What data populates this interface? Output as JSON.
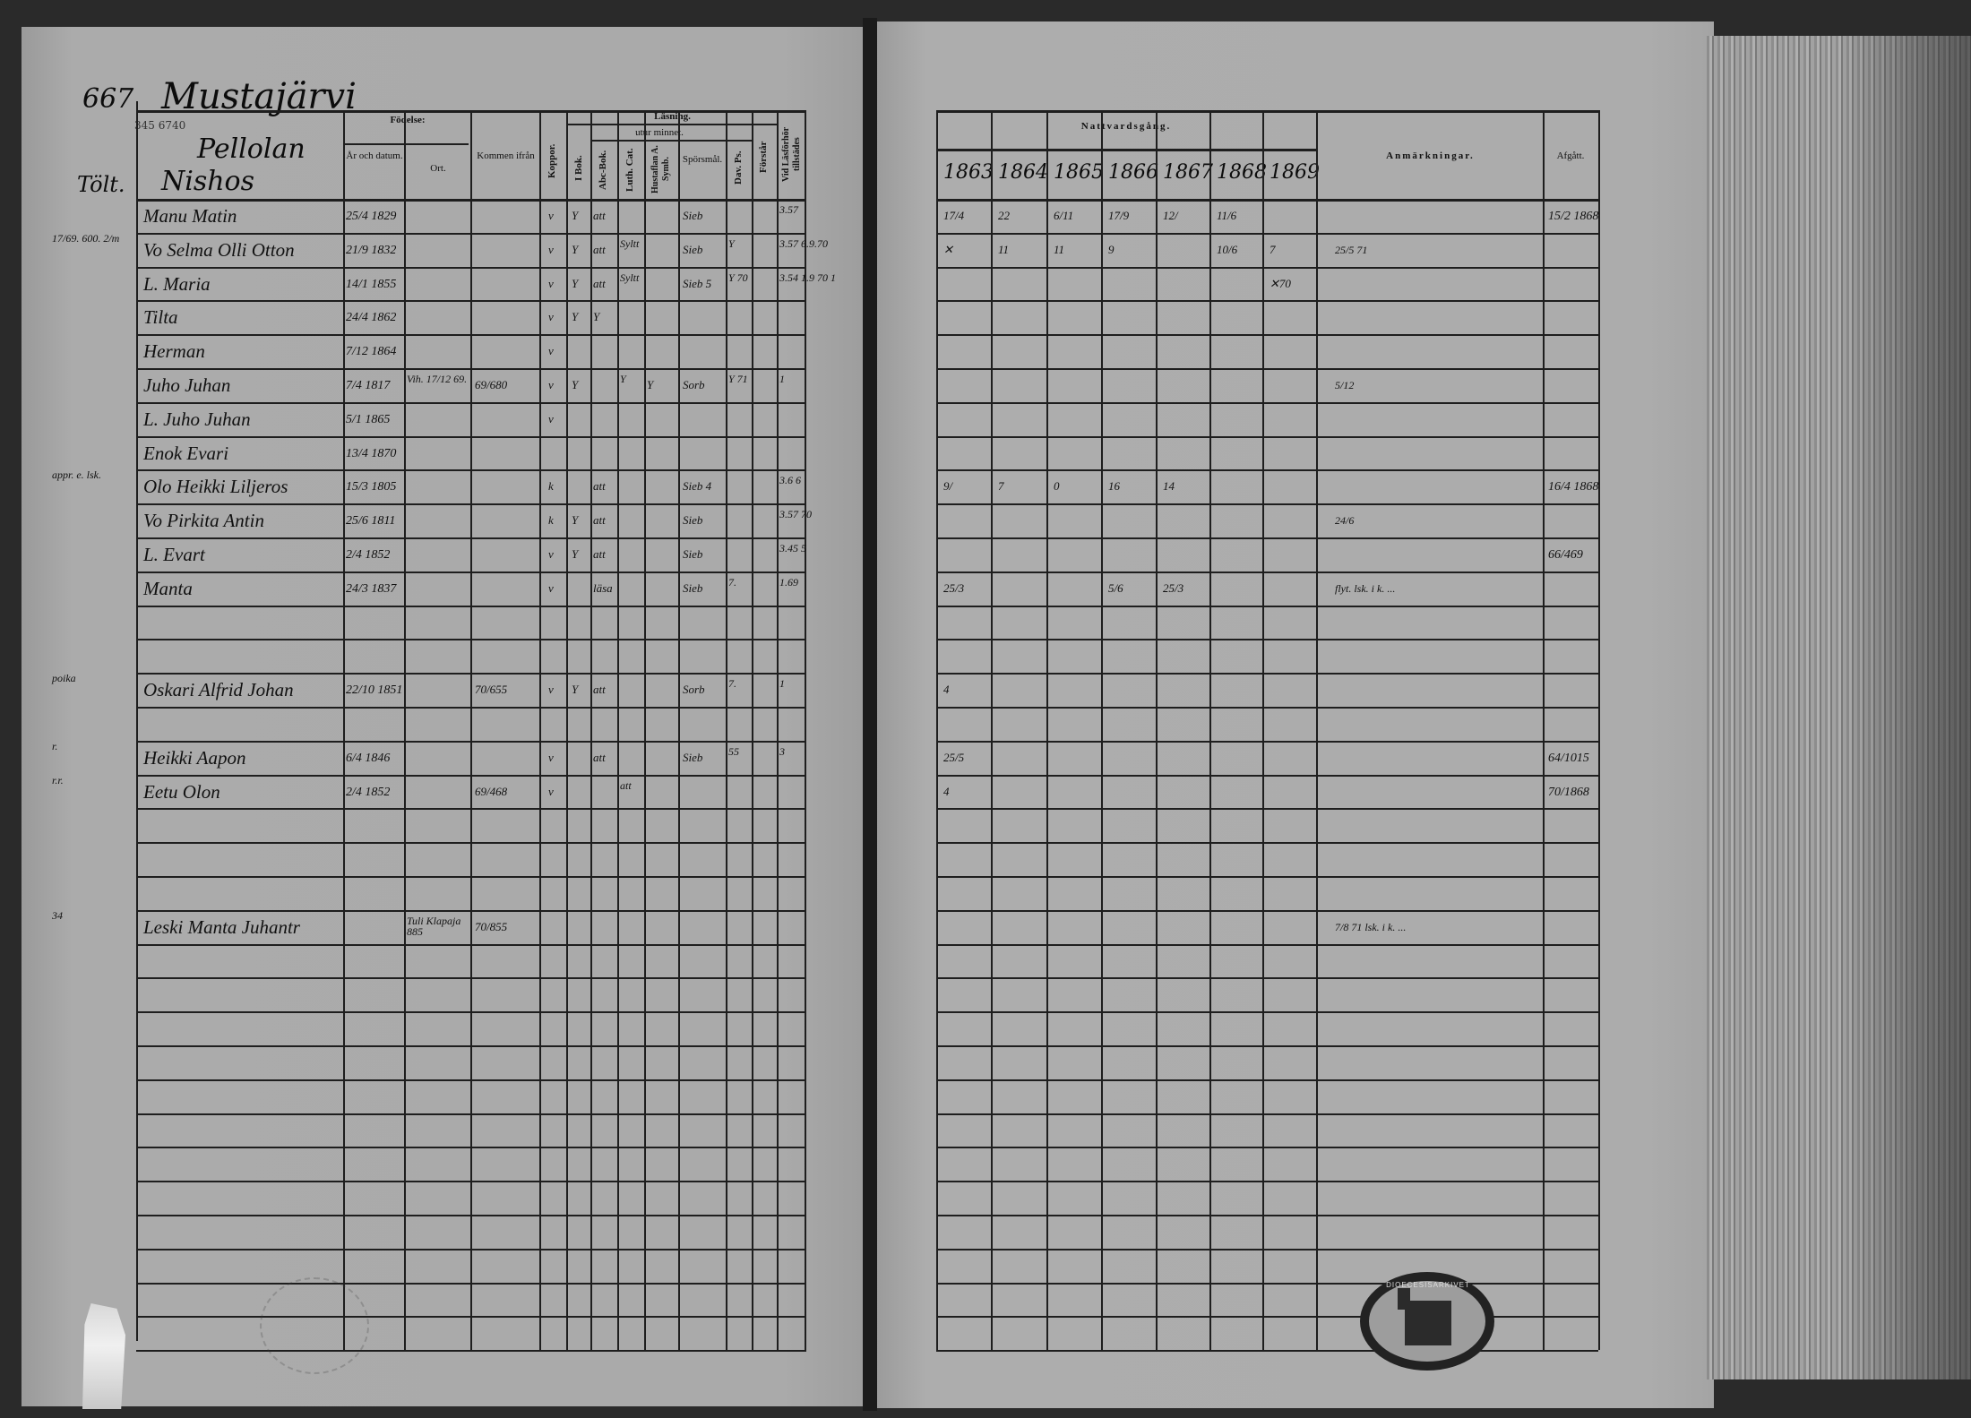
{
  "document": {
    "page_number": "667",
    "village": "Mustajärvi",
    "pencil_ref": "345 6740",
    "farm": "Pellolan",
    "tenant_label": "Tölt.",
    "tenant_name": "Nishos",
    "margin_note_row1": "17/69. 600. 2/m",
    "stamp_text": "DIOECESISARKIVET"
  },
  "left_headers": {
    "fodelse": "Födelse:",
    "ar": "År och datum.",
    "ort": "Ort.",
    "kommen": "Kommen ifrån",
    "kopor": "Koppor.",
    "lasning": "Läsning.",
    "utur_minnet": "utur minnet.",
    "idok": "I Bok.",
    "abc": "Abc-Bok.",
    "luth": "Luth. Cat.",
    "hust": "Hustaflan A. Symb.",
    "spors": "Spörsmål.",
    "dav": "Dav. Ps.",
    "forslar": "Förstår",
    "lasforhor": "Vid Läsförhör tillstädes"
  },
  "right_headers": {
    "nattvard": "Nattvardsgång.",
    "years": [
      "1863",
      "1864",
      "1865",
      "1866",
      "1867",
      "1868",
      "1869"
    ],
    "anmarkningar": "Anmärkningar.",
    "afgatt": "Afgått."
  },
  "rows": [
    {
      "margin": "",
      "name": "Manu Matin",
      "birth": "25/4 1829",
      "place": "",
      "from": "",
      "kopor": "v",
      "idok": "Y",
      "abc": "att",
      "luth": "",
      "hust": "",
      "spors": "Sieb",
      "dav": "",
      "forslar": "",
      "lasforhor": "3.57",
      "y": [
        "17/4",
        "22",
        "6/11",
        "17/9",
        "12/",
        "11/6",
        ""
      ],
      "notes": "",
      "afgatt": "15/2 1868"
    },
    {
      "margin": "17/69. 600. 2/m",
      "name": "Vo Selma Olli Otton",
      "birth": "21/9 1832",
      "place": "",
      "from": "",
      "kopor": "v",
      "idok": "Y",
      "abc": "att",
      "luth": "Syltt",
      "hust": "",
      "spors": "Sieb",
      "dav": "Y",
      "forslar": "",
      "lasforhor": "3.57 6.9.70",
      "y": [
        "✕",
        "11",
        "11",
        "9",
        "",
        "10/6",
        "7"
      ],
      "notes": "25/5 71",
      "afgatt": ""
    },
    {
      "margin": "",
      "name": "L. Maria",
      "birth": "14/1 1855",
      "place": "",
      "from": "",
      "kopor": "v",
      "idok": "Y",
      "abc": "att",
      "luth": "Syltt",
      "hust": "",
      "spors": "Sieb 5",
      "dav": "Y 70",
      "forslar": "",
      "lasforhor": "3.54 1.9 70 1",
      "y": [
        "",
        "",
        "",
        "",
        "",
        "",
        "✕70"
      ],
      "notes": "",
      "afgatt": ""
    },
    {
      "margin": "",
      "name": "Tilta",
      "birth": "24/4 1862",
      "place": "",
      "from": "",
      "kopor": "v",
      "idok": "Y",
      "abc": "Y",
      "luth": "",
      "hust": "",
      "spors": "",
      "dav": "",
      "forslar": "",
      "lasforhor": "",
      "y": [
        "",
        "",
        "",
        "",
        "",
        "",
        ""
      ],
      "notes": "",
      "afgatt": ""
    },
    {
      "margin": "",
      "name": "Herman",
      "birth": "7/12 1864",
      "place": "",
      "from": "",
      "kopor": "v",
      "idok": "",
      "abc": "",
      "luth": "",
      "hust": "",
      "spors": "",
      "dav": "",
      "forslar": "",
      "lasforhor": "",
      "y": [
        "",
        "",
        "",
        "",
        "",
        "",
        ""
      ],
      "notes": "",
      "afgatt": ""
    },
    {
      "margin": "",
      "name": "Juho Juhan",
      "birth": "7/4 1817",
      "place": "Vih. 17/12 69.",
      "from": "69/680",
      "kopor": "v",
      "idok": "Y",
      "abc": "",
      "luth": "Y",
      "hust": "Y",
      "spors": "Sorb",
      "dav": "Y 71",
      "forslar": "",
      "lasforhor": "1",
      "y": [
        "",
        "",
        "",
        "",
        "",
        "",
        ""
      ],
      "notes": "5/12",
      "afgatt": ""
    },
    {
      "margin": "",
      "name": "L. Juho Juhan",
      "birth": "5/1 1865",
      "place": "",
      "from": "",
      "kopor": "v",
      "idok": "",
      "abc": "",
      "luth": "",
      "hust": "",
      "spors": "",
      "dav": "",
      "forslar": "",
      "lasforhor": "",
      "y": [
        "",
        "",
        "",
        "",
        "",
        "",
        ""
      ],
      "notes": "",
      "afgatt": ""
    },
    {
      "margin": "",
      "name": "Enok Evari",
      "birth": "13/4 1870",
      "place": "",
      "from": "",
      "kopor": "",
      "idok": "",
      "abc": "",
      "luth": "",
      "hust": "",
      "spors": "",
      "dav": "",
      "forslar": "",
      "lasforhor": "",
      "y": [
        "",
        "",
        "",
        "",
        "",
        "",
        ""
      ],
      "notes": "",
      "afgatt": ""
    },
    {
      "margin": "appr. e. lsk.",
      "name": "Olo Heikki Liljeros",
      "birth": "15/3 1805",
      "place": "",
      "from": "",
      "kopor": "k",
      "idok": "",
      "abc": "att",
      "luth": "",
      "hust": "",
      "spors": "Sieb 4",
      "dav": "",
      "forslar": "",
      "lasforhor": "3.6 6",
      "y": [
        "9/",
        "7",
        "0",
        "16",
        "14",
        "",
        ""
      ],
      "notes": "",
      "afgatt": "16/4 1868"
    },
    {
      "margin": "",
      "name": "Vo Pirkita Antin",
      "birth": "25/6 1811",
      "place": "",
      "from": "",
      "kopor": "k",
      "idok": "Y",
      "abc": "att",
      "luth": "",
      "hust": "",
      "spors": "Sieb",
      "dav": "",
      "forslar": "",
      "lasforhor": "3.57 70",
      "y": [
        "",
        "",
        "",
        "",
        "",
        "",
        ""
      ],
      "notes": "24/6",
      "afgatt": ""
    },
    {
      "margin": "",
      "name": "L. Evart",
      "birth": "2/4 1852",
      "place": "",
      "from": "",
      "kopor": "v",
      "idok": "Y",
      "abc": "att",
      "luth": "",
      "hust": "",
      "spors": "Sieb",
      "dav": "",
      "forslar": "",
      "lasforhor": "3.45 5",
      "y": [
        "",
        "",
        "",
        "",
        "",
        "",
        ""
      ],
      "notes": "",
      "afgatt": "66/469"
    },
    {
      "margin": "",
      "name": "Manta",
      "birth": "24/3 1837",
      "place": "",
      "from": "",
      "kopor": "v",
      "idok": "",
      "abc": "läsa",
      "luth": "",
      "hust": "",
      "spors": "Sieb",
      "dav": "7.",
      "forslar": "",
      "lasforhor": "1.69",
      "y": [
        "25/3",
        "",
        "",
        "5/6",
        "25/3",
        "",
        ""
      ],
      "notes": "flyt. lsk. i k. ...",
      "afgatt": ""
    },
    {
      "margin": "",
      "name": "",
      "birth": "",
      "place": "",
      "from": "",
      "kopor": "",
      "idok": "",
      "abc": "",
      "luth": "",
      "hust": "",
      "spors": "",
      "dav": "",
      "forslar": "",
      "lasforhor": "",
      "y": [
        "",
        "",
        "",
        "",
        "",
        "",
        ""
      ],
      "notes": "",
      "afgatt": ""
    },
    {
      "margin": "",
      "name": "",
      "birth": "",
      "place": "",
      "from": "",
      "kopor": "",
      "idok": "",
      "abc": "",
      "luth": "",
      "hust": "",
      "spors": "",
      "dav": "",
      "forslar": "",
      "lasforhor": "",
      "y": [
        "",
        "",
        "",
        "",
        "",
        "",
        ""
      ],
      "notes": "",
      "afgatt": ""
    },
    {
      "margin": "poika",
      "name": "Oskari Alfrid Johan",
      "birth": "22/10 1851",
      "place": "",
      "from": "70/655",
      "kopor": "v",
      "idok": "Y",
      "abc": "att",
      "luth": "",
      "hust": "",
      "spors": "Sorb",
      "dav": "7.",
      "forslar": "",
      "lasforhor": "1",
      "y": [
        "4",
        "",
        "",
        "",
        "",
        "",
        ""
      ],
      "notes": "",
      "afgatt": ""
    },
    {
      "margin": "",
      "name": "",
      "birth": "",
      "place": "",
      "from": "",
      "kopor": "",
      "idok": "",
      "abc": "",
      "luth": "",
      "hust": "",
      "spors": "",
      "dav": "",
      "forslar": "",
      "lasforhor": "",
      "y": [
        "",
        "",
        "",
        "",
        "",
        "",
        ""
      ],
      "notes": "",
      "afgatt": ""
    },
    {
      "margin": "r.",
      "name": "Heikki Aapon",
      "birth": "6/4 1846",
      "place": "",
      "from": "",
      "kopor": "v",
      "idok": "",
      "abc": "att",
      "luth": "",
      "hust": "",
      "spors": "Sieb",
      "dav": "55",
      "forslar": "",
      "lasforhor": "3",
      "y": [
        "25/5",
        "",
        "",
        "",
        "",
        "",
        ""
      ],
      "notes": "",
      "afgatt": "64/1015"
    },
    {
      "margin": "r.r.",
      "name": "Eetu Olon",
      "birth": "2/4 1852",
      "place": "",
      "from": "69/468",
      "kopor": "v",
      "idok": "",
      "abc": "",
      "luth": "att",
      "hust": "",
      "spors": "",
      "dav": "",
      "forslar": "",
      "lasforhor": "",
      "y": [
        "4",
        "",
        "",
        "",
        "",
        "",
        ""
      ],
      "notes": "",
      "afgatt": "70/1868"
    },
    {
      "margin": "",
      "name": "",
      "birth": "",
      "place": "",
      "from": "",
      "kopor": "",
      "idok": "",
      "abc": "",
      "luth": "",
      "hust": "",
      "spors": "",
      "dav": "",
      "forslar": "",
      "lasforhor": "",
      "y": [
        "",
        "",
        "",
        "",
        "",
        "",
        ""
      ],
      "notes": "",
      "afgatt": ""
    },
    {
      "margin": "",
      "name": "",
      "birth": "",
      "place": "",
      "from": "",
      "kopor": "",
      "idok": "",
      "abc": "",
      "luth": "",
      "hust": "",
      "spors": "",
      "dav": "",
      "forslar": "",
      "lasforhor": "",
      "y": [
        "",
        "",
        "",
        "",
        "",
        "",
        ""
      ],
      "notes": "",
      "afgatt": ""
    },
    {
      "margin": "",
      "name": "",
      "birth": "",
      "place": "",
      "from": "",
      "kopor": "",
      "idok": "",
      "abc": "",
      "luth": "",
      "hust": "",
      "spors": "",
      "dav": "",
      "forslar": "",
      "lasforhor": "",
      "y": [
        "",
        "",
        "",
        "",
        "",
        "",
        ""
      ],
      "notes": "",
      "afgatt": ""
    },
    {
      "margin": "34",
      "name": "Leski Manta Juhantr",
      "birth": "",
      "place": "Tuli Klapaja 885",
      "from": "70/855",
      "kopor": "",
      "idok": "",
      "abc": "",
      "luth": "",
      "hust": "",
      "spors": "",
      "dav": "",
      "forslar": "",
      "lasforhor": "",
      "y": [
        "",
        "",
        "",
        "",
        "",
        "",
        ""
      ],
      "notes": "7/8 71 lsk. i k. ...",
      "afgatt": ""
    }
  ],
  "empty_row_count": 12
}
